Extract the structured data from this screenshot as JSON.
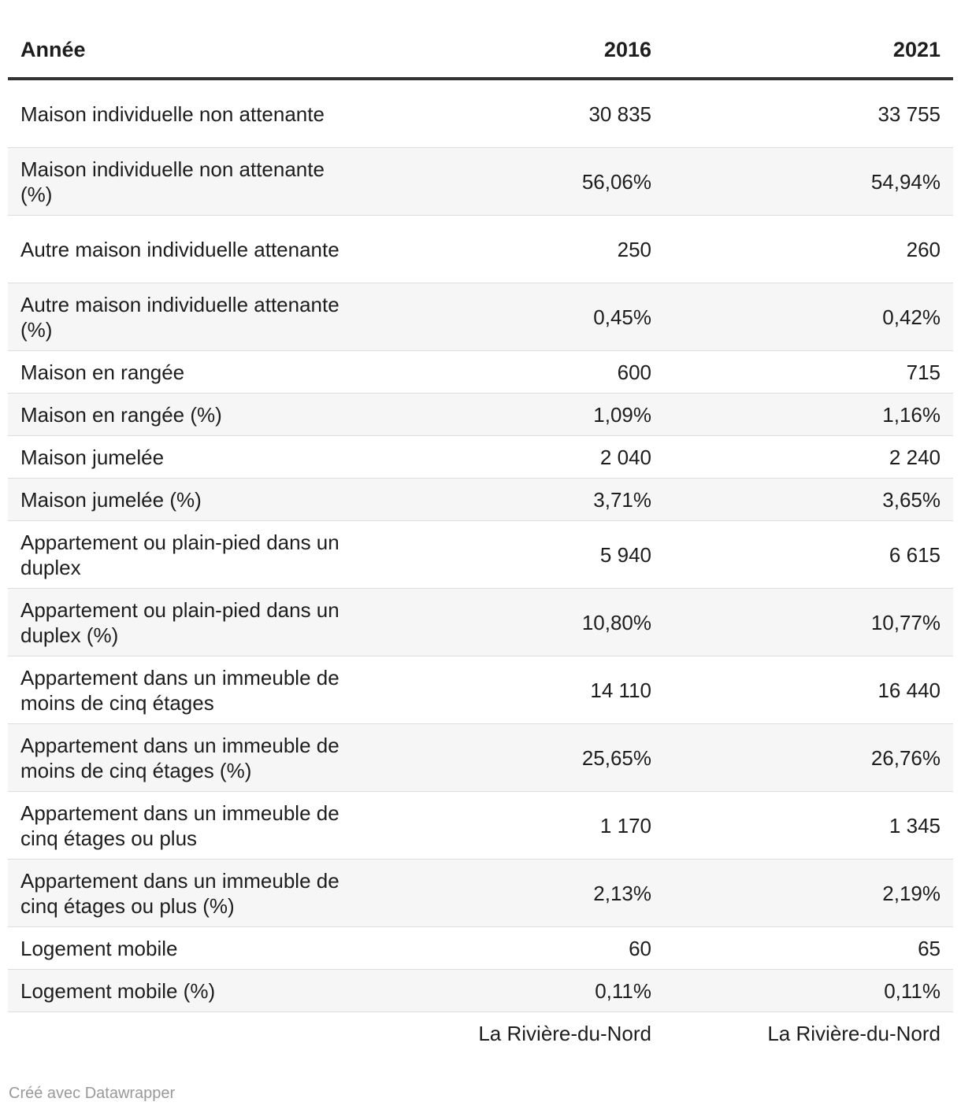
{
  "chart_data": {
    "type": "table",
    "columns": [
      "Année",
      "2016",
      "2021"
    ],
    "rows": [
      {
        "label": "Maison individuelle non attenante",
        "values": [
          "30 835",
          "33 755"
        ]
      },
      {
        "label": "Maison individuelle non attenante (%)",
        "values": [
          "56,06%",
          "54,94%"
        ]
      },
      {
        "label": "Autre maison individuelle attenante",
        "values": [
          "250",
          "260"
        ]
      },
      {
        "label": "Autre maison individuelle attenante (%)",
        "values": [
          "0,45%",
          "0,42%"
        ]
      },
      {
        "label": "Maison en rangée",
        "values": [
          "600",
          "715"
        ]
      },
      {
        "label": "Maison en rangée (%)",
        "values": [
          "1,09%",
          "1,16%"
        ]
      },
      {
        "label": "Maison jumelée",
        "values": [
          "2 040",
          "2 240"
        ]
      },
      {
        "label": "Maison jumelée (%)",
        "values": [
          "3,71%",
          "3,65%"
        ]
      },
      {
        "label": "Appartement ou plain-pied dans un duplex",
        "values": [
          "5 940",
          "6 615"
        ]
      },
      {
        "label": "Appartement ou plain-pied dans un duplex (%)",
        "values": [
          "10,80%",
          "10,77%"
        ]
      },
      {
        "label": "Appartement dans un immeuble de moins de cinq étages",
        "values": [
          "14 110",
          "16 440"
        ]
      },
      {
        "label": "Appartement dans un immeuble de moins de cinq étages (%)",
        "values": [
          "25,65%",
          "26,76%"
        ]
      },
      {
        "label": "Appartement dans un immeuble de cinq étages ou plus",
        "values": [
          "1 170",
          "1 345"
        ]
      },
      {
        "label": "Appartement dans un immeuble de cinq étages ou plus (%)",
        "values": [
          "2,13%",
          "2,19%"
        ]
      },
      {
        "label": "Logement mobile",
        "values": [
          "60",
          "65"
        ]
      },
      {
        "label": "Logement mobile (%)",
        "values": [
          "0,11%",
          "0,11%"
        ]
      }
    ],
    "footer": [
      "",
      "La Rivière-du-Nord",
      "La Rivière-du-Nord"
    ]
  },
  "credit": "Créé avec Datawrapper"
}
